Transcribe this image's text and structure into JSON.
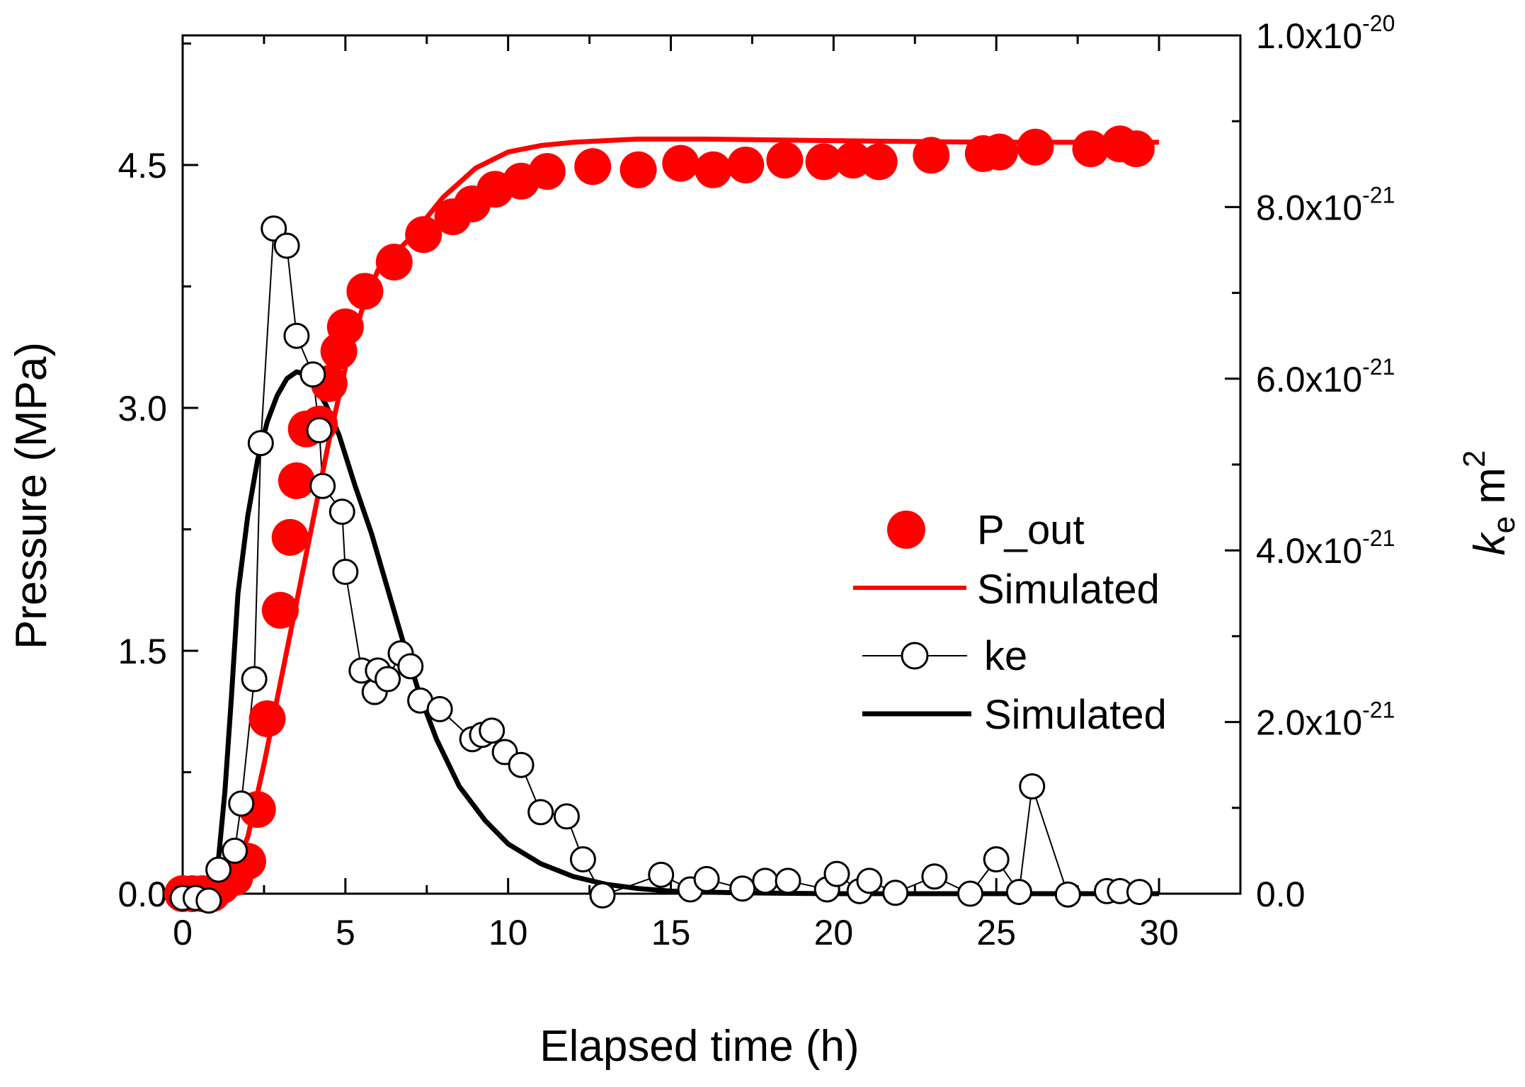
{
  "chart_data": {
    "type": "scatter",
    "xlabel": "Elapsed time (h)",
    "ylabel_left": "Pressure (MPa)",
    "ylabel_right": {
      "base": "k",
      "sub": "e",
      "unit": "m",
      "sup": "2"
    },
    "xlim": [
      0,
      32.5
    ],
    "ylim_left": [
      0,
      5.3
    ],
    "ylim_right": [
      0,
      1e-20
    ],
    "x_ticks": [
      0,
      5,
      10,
      15,
      20,
      25,
      30
    ],
    "x_tick_labels": [
      "0",
      "5",
      "10",
      "15",
      "20",
      "25",
      "30"
    ],
    "y_left_ticks": [
      0,
      1.5,
      3.0,
      4.5
    ],
    "y_left_tick_labels": [
      "0.0",
      "1.5",
      "3.0",
      "4.5"
    ],
    "y_right_ticks": [
      0,
      2e-21,
      4e-21,
      6e-21,
      8e-21,
      1e-20
    ],
    "y_right_tick_labels": [
      {
        "base": "0.0",
        "exp": ""
      },
      {
        "base": "2.0x10",
        "exp": "-21"
      },
      {
        "base": "4.0x10",
        "exp": "-21"
      },
      {
        "base": "6.0x10",
        "exp": "-21"
      },
      {
        "base": "8.0x10",
        "exp": "-21"
      },
      {
        "base": "1.0x10",
        "exp": "-20"
      }
    ],
    "grid": false,
    "legend_position": "center-right",
    "legend": [
      {
        "label": "P_out",
        "style": "red-filled-circle"
      },
      {
        "label": "Simulated",
        "style": "red-line"
      },
      {
        "label": "ke",
        "style": "black-open-circle-line"
      },
      {
        "label": "Simulated",
        "style": "black-line"
      }
    ],
    "colors": {
      "pressure": "#ff0000",
      "permeability": "#000000"
    },
    "series": [
      {
        "name": "P_out",
        "axis": "left",
        "points": [
          [
            0.0,
            0.0
          ],
          [
            0.3,
            0.0
          ],
          [
            0.6,
            0.0
          ],
          [
            0.9,
            0.0
          ],
          [
            1.2,
            0.05
          ],
          [
            1.6,
            0.1
          ],
          [
            2.0,
            0.2
          ],
          [
            2.3,
            0.52
          ],
          [
            2.6,
            1.08
          ],
          [
            3.0,
            1.75
          ],
          [
            3.3,
            2.2
          ],
          [
            3.5,
            2.55
          ],
          [
            3.8,
            2.87
          ],
          [
            4.2,
            2.9
          ],
          [
            4.5,
            3.15
          ],
          [
            4.8,
            3.35
          ],
          [
            5.0,
            3.5
          ],
          [
            5.6,
            3.72
          ],
          [
            6.5,
            3.9
          ],
          [
            7.4,
            4.07
          ],
          [
            8.3,
            4.18
          ],
          [
            8.9,
            4.26
          ],
          [
            9.6,
            4.35
          ],
          [
            10.4,
            4.4
          ],
          [
            11.2,
            4.46
          ],
          [
            12.6,
            4.49
          ],
          [
            14.0,
            4.47
          ],
          [
            15.3,
            4.51
          ],
          [
            16.3,
            4.47
          ],
          [
            17.3,
            4.5
          ],
          [
            18.5,
            4.53
          ],
          [
            19.7,
            4.52
          ],
          [
            20.6,
            4.53
          ],
          [
            21.4,
            4.52
          ],
          [
            23.0,
            4.56
          ],
          [
            24.6,
            4.57
          ],
          [
            25.1,
            4.58
          ],
          [
            26.2,
            4.61
          ],
          [
            27.9,
            4.6
          ],
          [
            28.8,
            4.63
          ],
          [
            29.3,
            4.6
          ]
        ]
      },
      {
        "name": "Simulated",
        "axis": "left",
        "style": "line",
        "points": [
          [
            0,
            0.03
          ],
          [
            1.0,
            0.03
          ],
          [
            1.5,
            0.1
          ],
          [
            2.0,
            0.35
          ],
          [
            2.5,
            0.8
          ],
          [
            3.0,
            1.3
          ],
          [
            3.5,
            1.8
          ],
          [
            4.0,
            2.3
          ],
          [
            4.5,
            2.8
          ],
          [
            5.0,
            3.25
          ],
          [
            5.5,
            3.6
          ],
          [
            6.0,
            3.85
          ],
          [
            7.0,
            4.05
          ],
          [
            8.0,
            4.3
          ],
          [
            9.0,
            4.48
          ],
          [
            10.0,
            4.58
          ],
          [
            11.0,
            4.62
          ],
          [
            12.0,
            4.64
          ],
          [
            14.0,
            4.66
          ],
          [
            16.0,
            4.66
          ],
          [
            20.0,
            4.65
          ],
          [
            25.0,
            4.64
          ],
          [
            30.0,
            4.64
          ]
        ]
      },
      {
        "name": "ke",
        "axis": "right",
        "style": "marker-line",
        "points": [
          [
            0.0,
            -5e-23
          ],
          [
            0.4,
            -5e-23
          ],
          [
            0.8,
            -8e-23
          ],
          [
            1.1,
            2.8e-22
          ],
          [
            1.6,
            5e-22
          ],
          [
            1.8,
            1.05e-21
          ],
          [
            2.2,
            2.5e-21
          ],
          [
            2.4,
            5.25e-21
          ],
          [
            2.8,
            7.75e-21
          ],
          [
            3.2,
            7.55e-21
          ],
          [
            3.5,
            6.5e-21
          ],
          [
            4.0,
            6.05e-21
          ],
          [
            4.2,
            5.4e-21
          ],
          [
            4.3,
            4.75e-21
          ],
          [
            4.9,
            4.45e-21
          ],
          [
            5.0,
            3.75e-21
          ],
          [
            5.5,
            2.6e-21
          ],
          [
            5.9,
            2.35e-21
          ],
          [
            6.0,
            2.6e-21
          ],
          [
            6.3,
            2.5e-21
          ],
          [
            6.7,
            2.8e-21
          ],
          [
            7.0,
            2.65e-21
          ],
          [
            7.3,
            2.25e-21
          ],
          [
            7.9,
            2.15e-21
          ],
          [
            8.9,
            1.8e-21
          ],
          [
            9.2,
            1.85e-21
          ],
          [
            9.5,
            1.9e-21
          ],
          [
            9.9,
            1.65e-21
          ],
          [
            10.4,
            1.5e-21
          ],
          [
            11.0,
            9.5e-22
          ],
          [
            11.8,
            9e-22
          ],
          [
            12.3,
            4e-22
          ],
          [
            12.9,
            -2e-23
          ],
          [
            14.7,
            2.2e-22
          ],
          [
            15.6,
            5e-23
          ],
          [
            16.1,
            1.7e-22
          ],
          [
            17.2,
            6e-23
          ],
          [
            17.9,
            1.5e-22
          ],
          [
            18.6,
            1.5e-22
          ],
          [
            19.8,
            5e-23
          ],
          [
            20.1,
            2.3e-22
          ],
          [
            20.8,
            3e-23
          ],
          [
            21.1,
            1.5e-22
          ],
          [
            21.9,
            1e-23
          ],
          [
            23.1,
            2e-22
          ],
          [
            24.2,
            0.0
          ],
          [
            25.0,
            4e-22
          ],
          [
            25.7,
            2e-23
          ],
          [
            26.1,
            1.25e-21
          ],
          [
            27.2,
            -1e-23
          ],
          [
            28.4,
            3e-23
          ],
          [
            28.8,
            3e-23
          ],
          [
            29.4,
            2e-23
          ]
        ]
      },
      {
        "name": "Simulated",
        "axis": "right",
        "style": "line",
        "points": [
          [
            0.3,
            0.0
          ],
          [
            0.6,
            2e-23
          ],
          [
            0.9,
            1e-22
          ],
          [
            1.1,
            4e-22
          ],
          [
            1.3,
            1.2e-21
          ],
          [
            1.5,
            2.3e-21
          ],
          [
            1.7,
            3.5e-21
          ],
          [
            2.0,
            4.4e-21
          ],
          [
            2.3,
            5.05e-21
          ],
          [
            2.6,
            5.5e-21
          ],
          [
            2.9,
            5.8e-21
          ],
          [
            3.2,
            6e-21
          ],
          [
            3.5,
            6.08e-21
          ],
          [
            3.8,
            6.05e-21
          ],
          [
            4.0,
            5.95e-21
          ],
          [
            4.4,
            5.7e-21
          ],
          [
            4.8,
            5.35e-21
          ],
          [
            5.3,
            4.75e-21
          ],
          [
            5.8,
            4.2e-21
          ],
          [
            6.3,
            3.55e-21
          ],
          [
            6.8,
            2.9e-21
          ],
          [
            7.3,
            2.3e-21
          ],
          [
            7.8,
            1.8e-21
          ],
          [
            8.5,
            1.25e-21
          ],
          [
            9.3,
            8.5e-22
          ],
          [
            10.0,
            5.8e-22
          ],
          [
            11.0,
            3.5e-22
          ],
          [
            12.0,
            2e-22
          ],
          [
            13.0,
            1.1e-22
          ],
          [
            14.0,
            6e-23
          ],
          [
            15.0,
            3e-23
          ],
          [
            17.0,
            1e-23
          ],
          [
            20.0,
            0.0
          ],
          [
            25.0,
            0.0
          ],
          [
            30.0,
            0.0
          ]
        ]
      }
    ]
  }
}
